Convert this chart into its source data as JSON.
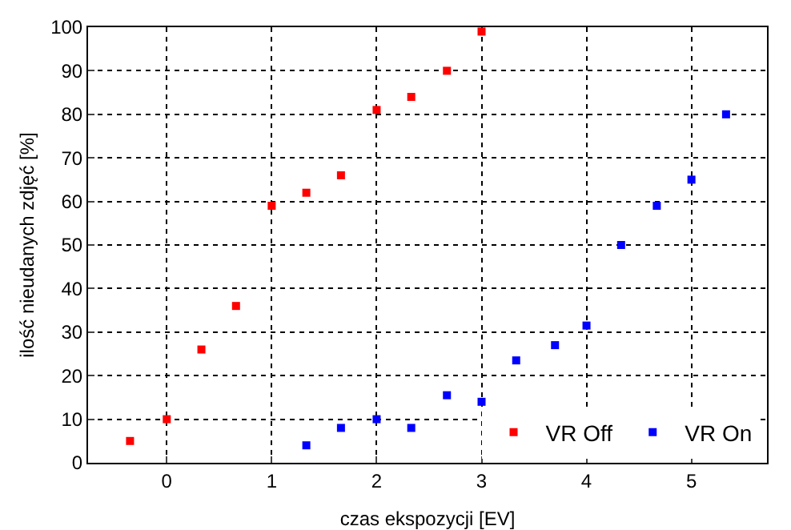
{
  "chart_data": {
    "type": "scatter",
    "xlabel": "czas ekspozycji [EV]",
    "ylabel": "ilość nieudanych zdjęć [%]",
    "xlim": [
      -0.75,
      5.72
    ],
    "xticks": [
      0,
      1,
      2,
      3,
      4,
      5
    ],
    "ylim": [
      0,
      100
    ],
    "yticks": [
      0,
      10,
      20,
      30,
      40,
      50,
      60,
      70,
      80,
      90,
      100
    ],
    "grid": true,
    "legend": "bottom right",
    "marker": "square",
    "series": [
      {
        "name": "VR Off",
        "color": "#ff0000",
        "x": [
          -0.35,
          0,
          0.33,
          0.66,
          1,
          1.33,
          1.66,
          2,
          2.33,
          2.67,
          3
        ],
        "values": [
          5,
          10,
          26,
          36,
          59,
          62,
          66,
          81,
          84,
          90,
          99
        ]
      },
      {
        "name": "VR On",
        "color": "#0000ff",
        "x": [
          1.33,
          1.66,
          2,
          2.33,
          2.67,
          3,
          3.33,
          3.7,
          4,
          4.33,
          4.67,
          5,
          5.33
        ],
        "values": [
          4,
          8,
          10,
          8,
          15.5,
          14,
          23.5,
          27,
          31.5,
          50,
          59,
          65,
          80
        ]
      }
    ]
  }
}
